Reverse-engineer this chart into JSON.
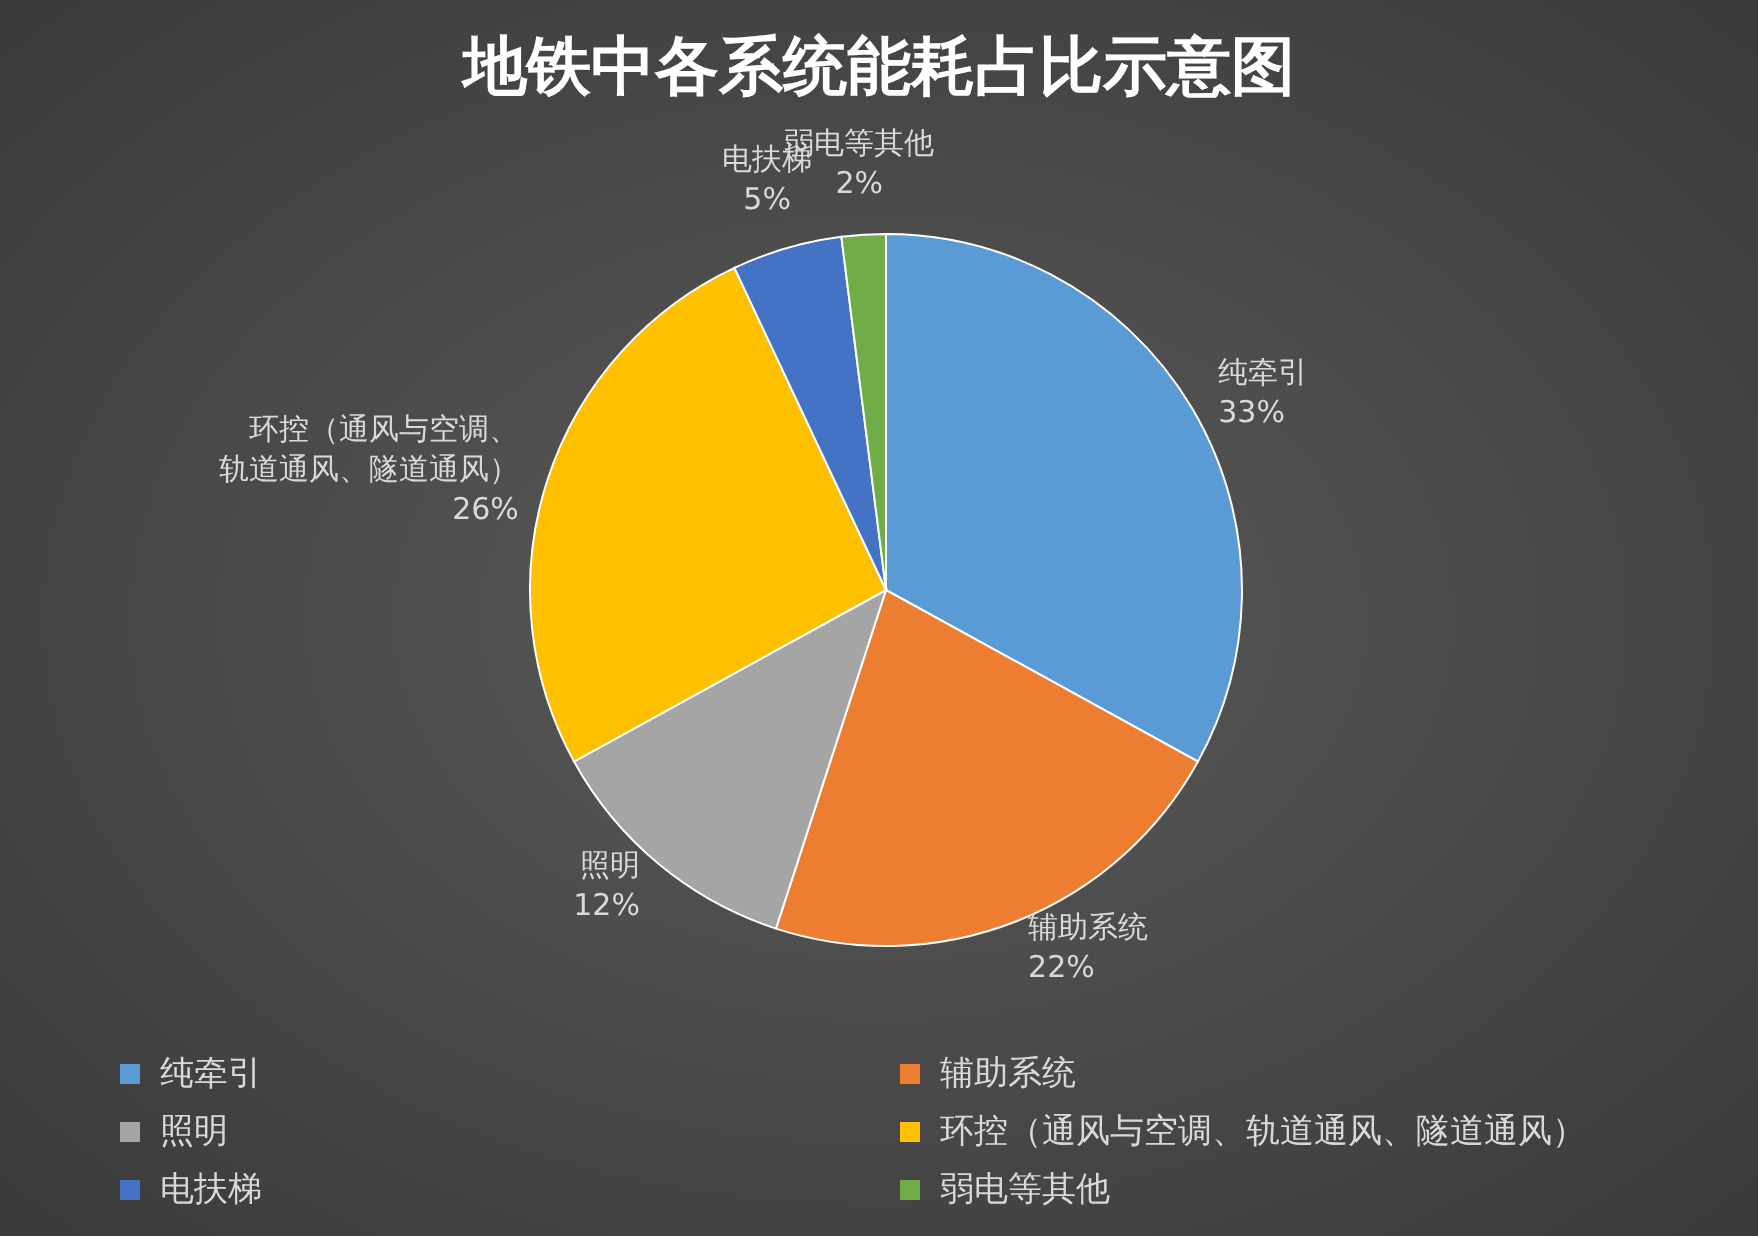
{
  "chart_data": {
    "type": "pie",
    "title": "地铁中各系统能耗占比示意图",
    "categories": [
      "纯牵引",
      "辅助系统",
      "照明",
      "环控（通风与空调、轨道通风、隧道通风）",
      "电扶梯",
      "弱电等其他"
    ],
    "values": [
      33,
      22,
      12,
      26,
      5,
      2
    ],
    "value_labels": [
      "33%",
      "22%",
      "12%",
      "26%",
      "5%",
      "2%"
    ],
    "colors": [
      "#5b9bd5",
      "#ed7d31",
      "#a5a5a5",
      "#ffc000",
      "#4472c4",
      "#70ad47"
    ],
    "legend": "bottom"
  }
}
